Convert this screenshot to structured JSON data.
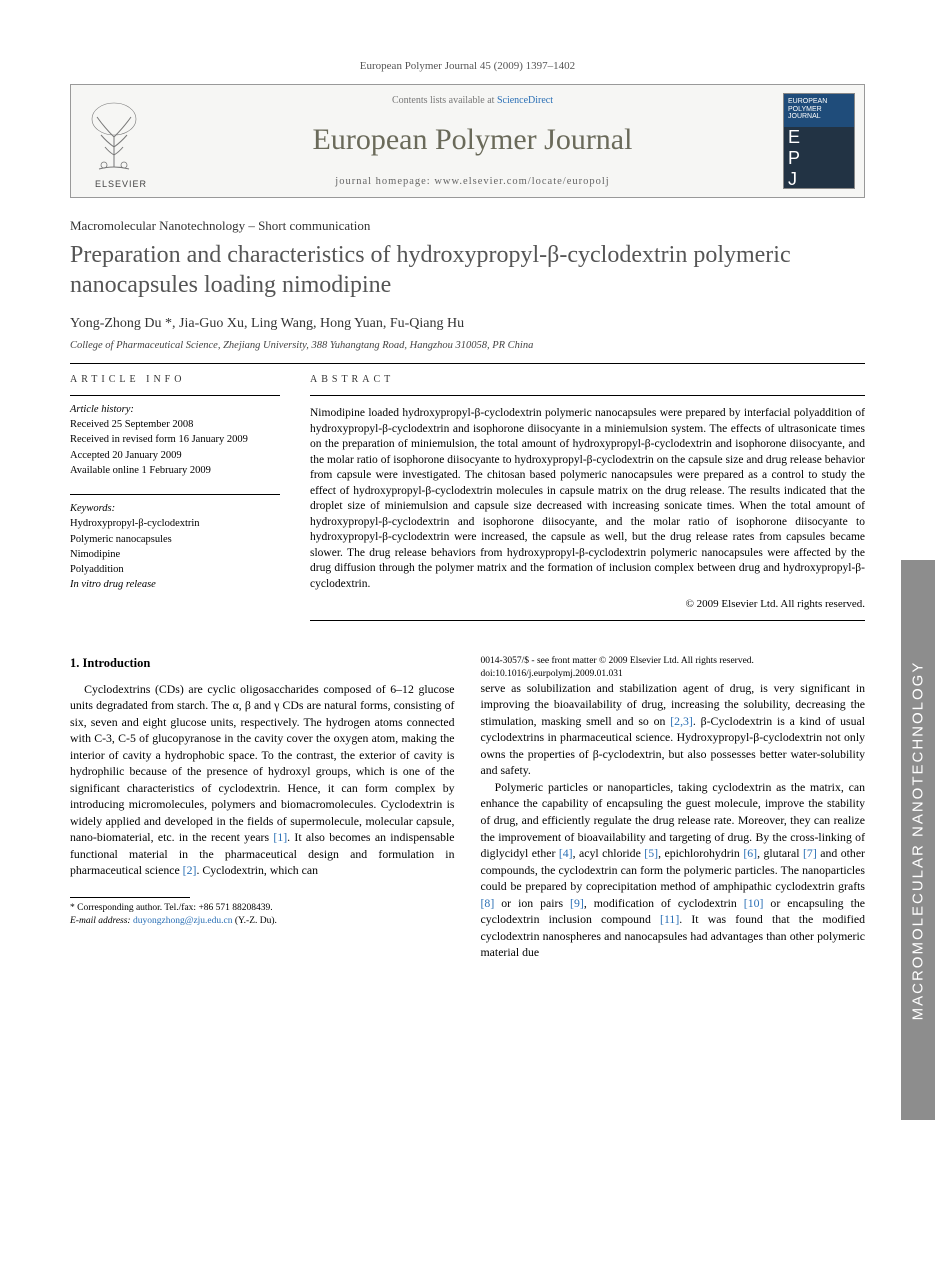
{
  "citation": "European Polymer Journal 45 (2009) 1397–1402",
  "header": {
    "publisher": "ELSEVIER",
    "contents_prefix": "Contents lists available at ",
    "contents_link": "ScienceDirect",
    "journal": "European Polymer Journal",
    "homepage_label": "journal homepage: ",
    "homepage": "www.elsevier.com/locate/europolj",
    "cover_top": "EUROPEAN POLYMER JOURNAL"
  },
  "kicker": "Macromolecular Nanotechnology – Short communication",
  "title": "Preparation and characteristics of hydroxypropyl-β-cyclodextrin polymeric nanocapsules loading nimodipine",
  "authors": "Yong-Zhong Du *, Jia-Guo Xu, Ling Wang, Hong Yuan, Fu-Qiang Hu",
  "affiliation": "College of Pharmaceutical Science, Zhejiang University, 388 Yuhangtang Road, Hangzhou 310058, PR China",
  "info": {
    "head": "article info",
    "history_head": "Article history:",
    "received": "Received 25 September 2008",
    "revised": "Received in revised form 16 January 2009",
    "accepted": "Accepted 20 January 2009",
    "online": "Available online 1 February 2009",
    "keywords_head": "Keywords:",
    "kw1": "Hydroxypropyl-β-cyclodextrin",
    "kw2": "Polymeric nanocapsules",
    "kw3": "Nimodipine",
    "kw4": "Polyaddition",
    "kw5": "In vitro drug release"
  },
  "abstract_head": "abstract",
  "abstract": "Nimodipine loaded hydroxypropyl-β-cyclodextrin polymeric nanocapsules were prepared by interfacial polyaddition of hydroxypropyl-β-cyclodextrin and isophorone diisocyante in a miniemulsion system. The effects of ultrasonicate times on the preparation of miniemulsion, the total amount of hydroxypropyl-β-cyclodextrin and isophorone diisocyante, and the molar ratio of isophorone diisocyante to hydroxypropyl-β-cyclodextrin on the capsule size and drug release behavior from capsule were investigated. The chitosan based polymeric nanocapsules were prepared as a control to study the effect of hydroxypropyl-β-cyclodextrin molecules in capsule matrix on the drug release. The results indicated that the droplet size of miniemulsion and capsule size decreased with increasing sonicate times. When the total amount of hydroxypropyl-β-cyclodextrin and isophorone diisocyante, and the molar ratio of isophorone diisocyante to hydroxypropyl-β-cyclodextrin were increased, the capsule as well, but the drug release rates from capsules became slower. The drug release behaviors from hydroxypropyl-β-cyclodextrin polymeric nanocapsules were affected by the drug diffusion through the polymer matrix and the formation of inclusion complex between drug and hydroxypropyl-β-cyclodextrin.",
  "copyright": "© 2009 Elsevier Ltd. All rights reserved.",
  "section1_head": "1. Introduction",
  "p1": "Cyclodextrins (CDs) are cyclic oligosaccharides composed of 6–12 glucose units degradated from starch. The α, β and γ CDs are natural forms, consisting of six, seven and eight glucose units, respectively. The hydrogen atoms connected with C-3, C-5 of glucopyranose in the cavity cover the oxygen atom, making the interior of cavity a hydrophobic space. To the contrast, the exterior of cavity is hydrophilic because of the presence of hydroxyl groups, which is one of the significant characteristics of cyclodextrin. Hence, it can form complex by introducing micromolecules, polymers and biomacromolecules. Cyclodextrin is widely applied and developed in the fields of supermolecule, molecular capsule, nano-biomaterial, etc. in the recent years [1]. It also becomes an indispensable functional material in the pharmaceutical design and formulation in pharmaceutical science [2]. Cyclodextrin, which can",
  "p2": "serve as solubilization and stabilization agent of drug, is very significant in improving the bioavailability of drug, increasing the solubility, decreasing the stimulation, masking smell and so on [2,3]. β-Cyclodextrin is a kind of usual cyclodextrins in pharmaceutical science. Hydroxypropyl-β-cyclodextrin not only owns the properties of β-cyclodextrin, but also possesses better water-solubility and safety.",
  "p3": "Polymeric particles or nanoparticles, taking cyclodextrin as the matrix, can enhance the capability of encapsuling the guest molecule, improve the stability of drug, and efficiently regulate the drug release rate. Moreover, they can realize the improvement of bioavailability and targeting of drug. By the cross-linking of diglycidyl ether [4], acyl chloride [5], epichlorohydrin [6], glutaral [7] and other compounds, the cyclodextrin can form the polymeric particles. The nanoparticles could be prepared by coprecipitation method of amphipathic cyclodextrin grafts [8] or ion pairs [9], modification of cyclodextrin [10] or encapsuling the cyclodextrin inclusion compound [11]. It was found that the modified cyclodextrin nanospheres and nanocapsules had advantages than other polymeric material due",
  "footnotes": {
    "corr": "* Corresponding author. Tel./fax: +86 571 88208439.",
    "email_label": "E-mail address:",
    "email": "duyongzhong@zju.edu.cn",
    "email_name": "(Y.-Z. Du)."
  },
  "doi": {
    "line1": "0014-3057/$ - see front matter © 2009 Elsevier Ltd. All rights reserved.",
    "line2": "doi:10.1016/j.eurpolymj.2009.01.031"
  },
  "sidetab": "MACROMOLECULAR NANOTECHNOLOGY",
  "colors": {
    "link": "#2a6fb5",
    "journal_name": "#6a6a5a",
    "sidetab_bg": "#8d8d8d",
    "cover_top": "#1f4c7a"
  }
}
